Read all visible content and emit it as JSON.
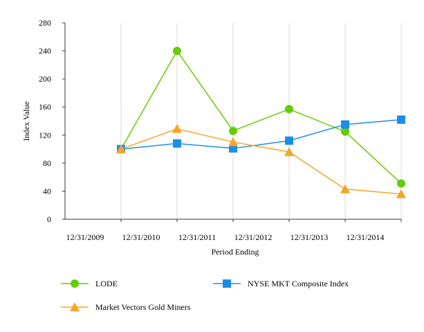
{
  "chart_data": {
    "type": "line",
    "title": "",
    "xlabel": "Period Ending",
    "ylabel": "Index Value",
    "ylim": [
      0,
      280
    ],
    "yticks": [
      0,
      40,
      80,
      120,
      160,
      200,
      240,
      280
    ],
    "categories": [
      "12/31/2009",
      "12/31/2010",
      "12/31/2011",
      "12/31/2012",
      "12/31/2013",
      "12/31/2014"
    ],
    "grid": "vertical",
    "series": [
      {
        "name": "LODE",
        "color": "#66cc00",
        "marker": "circle",
        "values": [
          100,
          240,
          126,
          157,
          125,
          51
        ]
      },
      {
        "name": "NYSE MKT Composite Index",
        "color": "#1a8fe6",
        "marker": "square",
        "values": [
          100,
          108,
          101,
          112,
          135,
          142
        ]
      },
      {
        "name": "Market Vectors Gold Miners",
        "color": "#f5a623",
        "marker": "triangle",
        "values": [
          100,
          129,
          110,
          96,
          43,
          36
        ]
      }
    ]
  }
}
